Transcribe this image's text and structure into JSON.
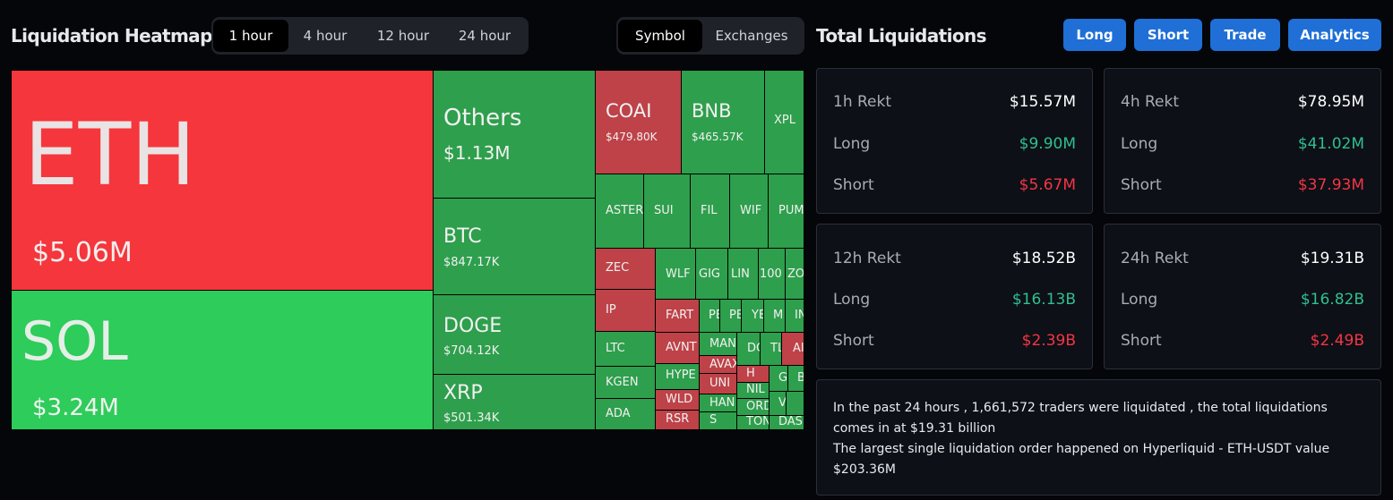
{
  "heatmap": {
    "title": "Liquidation Heatmap",
    "time_tabs": [
      "1 hour",
      "4 hour",
      "12 hour",
      "24 hour"
    ],
    "selected_time": "1 hour",
    "group_tabs": [
      "Symbol",
      "Exchanges"
    ],
    "selected_group": "Symbol",
    "tiles": {
      "eth": {
        "name": "ETH",
        "value": "$5.06M"
      },
      "sol": {
        "name": "SOL",
        "value": "$3.24M"
      },
      "others": {
        "name": "Others",
        "value": "$1.13M"
      },
      "btc": {
        "name": "BTC",
        "value": "$847.17K"
      },
      "doge": {
        "name": "DOGE",
        "value": "$704.12K"
      },
      "xrp": {
        "name": "XRP",
        "value": "$501.34K"
      },
      "coai": {
        "name": "COAI",
        "value": "$479.80K"
      },
      "bnb": {
        "name": "BNB",
        "value": "$465.57K"
      },
      "small": [
        "XPL",
        "ASTER",
        "SUI",
        "FIL",
        "WIF",
        "PUM",
        "ZEC",
        "IP",
        "LTC",
        "KGEN",
        "ADA",
        "WLF",
        "GIG",
        "LIN",
        "100",
        "ZO",
        "FART",
        "PE",
        "PE",
        "YE",
        "M",
        "IN",
        "AVNT",
        "MAN",
        "DC",
        "TL",
        "AI",
        "HYPE",
        "AVAX",
        "H",
        "G",
        "B",
        "WLD",
        "UNI",
        "NIL",
        "V",
        "HAN",
        "ORD",
        "RSR",
        "S",
        "TON",
        "DAS"
      ]
    },
    "colors": {
      "red": "#f5363c",
      "green": "#2ecc5a",
      "dark_green": "#2a9c4b",
      "dark_red": "#be4248"
    }
  },
  "total": {
    "title": "Total Liquidations",
    "buttons": [
      "Long",
      "Short",
      "Trade",
      "Analytics"
    ],
    "cards": [
      {
        "title": "1h Rekt",
        "total": "$15.57M",
        "long_label": "Long",
        "long": "$9.90M",
        "short_label": "Short",
        "short": "$5.67M"
      },
      {
        "title": "4h Rekt",
        "total": "$78.95M",
        "long_label": "Long",
        "long": "$41.02M",
        "short_label": "Short",
        "short": "$37.93M"
      },
      {
        "title": "12h Rekt",
        "total": "$18.52B",
        "long_label": "Long",
        "long": "$16.13B",
        "short_label": "Short",
        "short": "$2.39B"
      },
      {
        "title": "24h Rekt",
        "total": "$19.31B",
        "long_label": "Long",
        "long": "$16.82B",
        "short_label": "Short",
        "short": "$2.49B"
      }
    ],
    "summary_line1": "In the past 24 hours , 1,661,572 traders were liquidated , the total liquidations comes in at $19.31 billion",
    "summary_line2": "The largest single liquidation order happened on Hyperliquid - ETH-USDT value $203.36M"
  }
}
